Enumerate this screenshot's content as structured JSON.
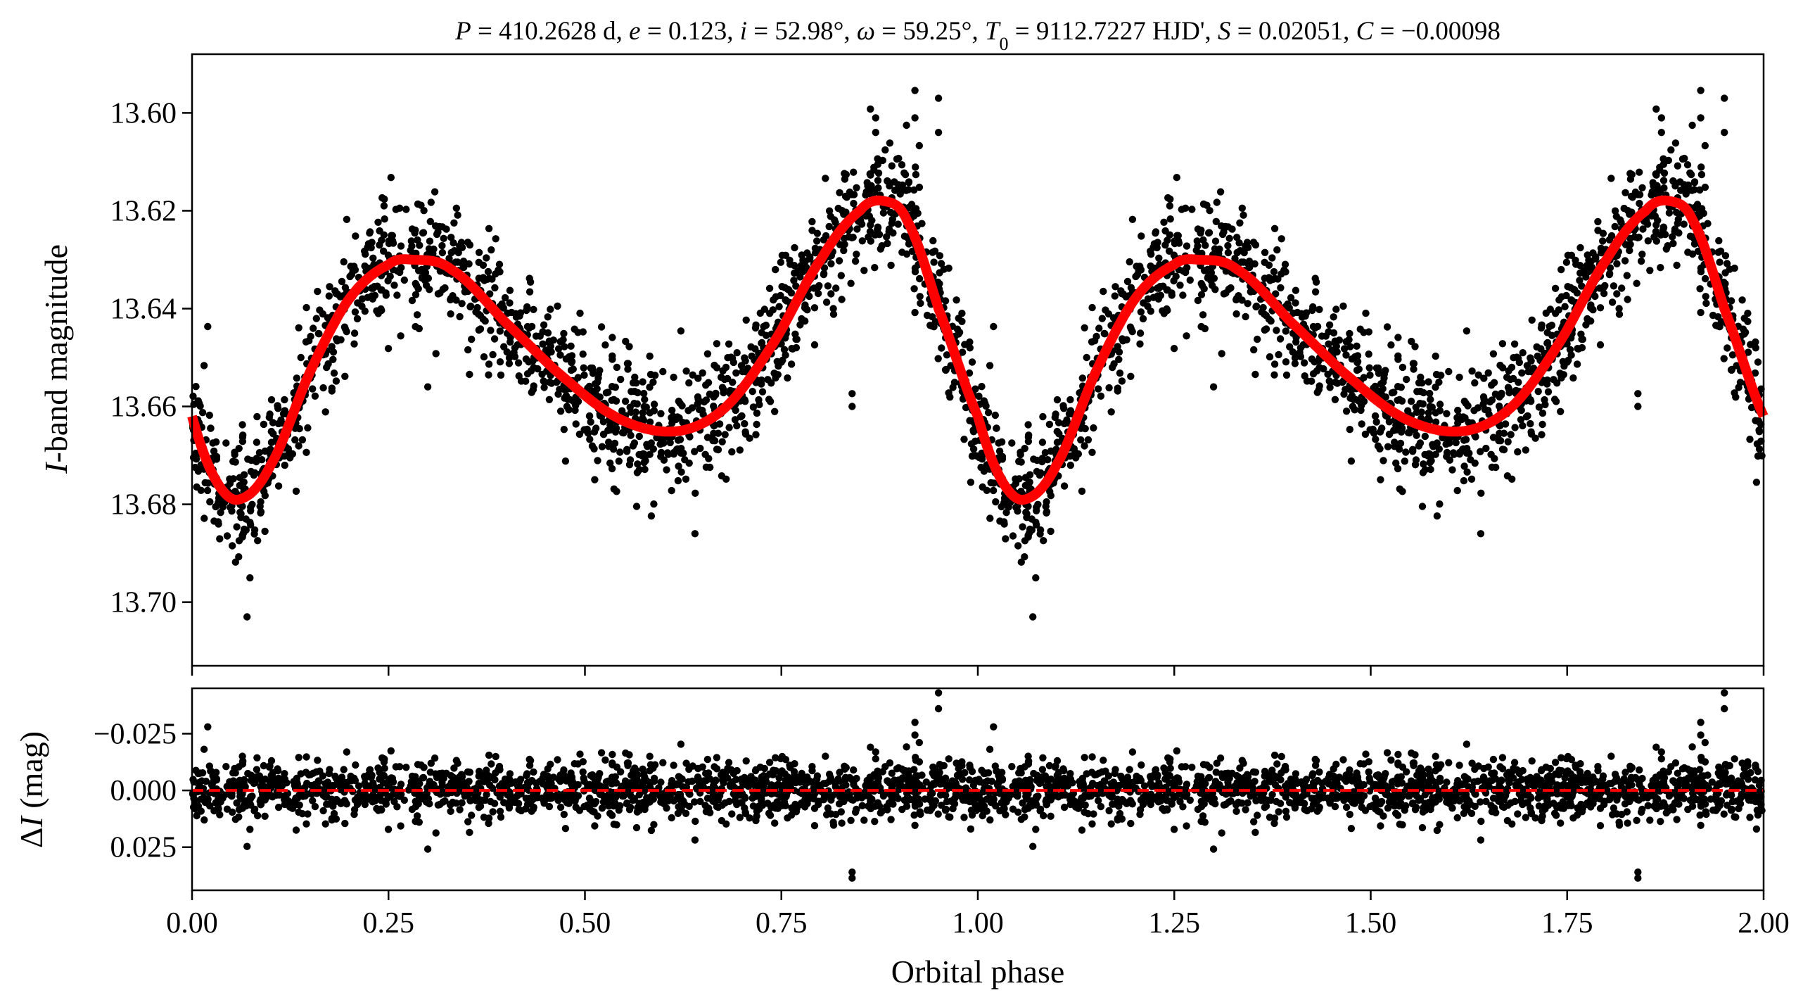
{
  "chart_data": [
    {
      "type": "scatter",
      "panel": "light-curve",
      "title_parts": [
        {
          "t": "P",
          "i": true
        },
        {
          "t": " = 410.2628 d, "
        },
        {
          "t": "e",
          "i": true
        },
        {
          "t": " = 0.123, "
        },
        {
          "t": "i",
          "i": true
        },
        {
          "t": " = 52.98°, "
        },
        {
          "t": "ω",
          "i": true
        },
        {
          "t": " = 59.25°, "
        },
        {
          "t": "T",
          "i": true
        },
        {
          "t": "0",
          "sub": true
        },
        {
          "t": " = 9112.7227 HJD', "
        },
        {
          "t": "S",
          "i": true
        },
        {
          "t": " = 0.02051, "
        },
        {
          "t": "C",
          "i": true
        },
        {
          "t": " = −0.00098"
        }
      ],
      "ylabel_parts": [
        {
          "t": "I",
          "i": true
        },
        {
          "t": "-band magnitude"
        }
      ],
      "xlim": [
        0,
        2
      ],
      "ylim": [
        13.713,
        13.588
      ],
      "y_inverted": true,
      "yticks": [
        13.6,
        13.62,
        13.64,
        13.66,
        13.68,
        13.7
      ],
      "ytick_labels": [
        "13.60",
        "13.62",
        "13.64",
        "13.66",
        "13.68",
        "13.70"
      ],
      "xticks": [
        0,
        0.25,
        0.5,
        0.75,
        1.0,
        1.25,
        1.5,
        1.75,
        2.0
      ],
      "model_color": "#ff0000",
      "point_color": "#000000",
      "points_per_cycle": 1500,
      "noise_sigma_mag": 0.0065,
      "model_curve": {
        "phase": [
          0.0,
          0.03,
          0.06,
          0.1,
          0.15,
          0.2,
          0.25,
          0.28,
          0.33,
          0.4,
          0.48,
          0.55,
          0.62,
          0.68,
          0.74,
          0.8,
          0.85,
          0.88,
          0.91,
          0.95,
          1.0
        ],
        "mag": [
          13.662,
          13.675,
          13.679,
          13.672,
          13.653,
          13.638,
          13.631,
          13.63,
          13.632,
          13.643,
          13.655,
          13.663,
          13.665,
          13.66,
          13.647,
          13.63,
          13.62,
          13.618,
          13.622,
          13.64,
          13.662
        ]
      },
      "outliers": [
        [
          0.87,
          13.601
        ],
        [
          0.92,
          13.601
        ],
        [
          0.95,
          13.597
        ],
        [
          0.87,
          13.604
        ],
        [
          0.07,
          13.703
        ],
        [
          0.84,
          13.66
        ],
        [
          0.64,
          13.686
        ],
        [
          0.3,
          13.656
        ]
      ]
    },
    {
      "type": "scatter",
      "panel": "residuals",
      "ylabel_parts": [
        {
          "t": "Δ"
        },
        {
          "t": "I",
          "i": true
        },
        {
          "t": " (mag)"
        }
      ],
      "xlabel": "Orbital phase",
      "xlim": [
        0,
        2
      ],
      "ylim": [
        0.044,
        -0.045
      ],
      "yticks": [
        -0.025,
        0,
        0.025
      ],
      "ytick_labels": [
        "−0.025",
        "0.000",
        "0.025"
      ],
      "xticks": [
        0,
        0.25,
        0.5,
        0.75,
        1.0,
        1.25,
        1.5,
        1.75,
        2.0
      ],
      "xtick_labels": [
        "0.00",
        "0.25",
        "0.50",
        "0.75",
        "1.00",
        "1.25",
        "1.50",
        "1.75",
        "2.00"
      ],
      "zero_line": 0,
      "zero_line_color": "#ff0000",
      "outliers": [
        [
          0.95,
          -0.036
        ],
        [
          0.92,
          -0.03
        ],
        [
          0.84,
          0.036
        ],
        [
          0.02,
          -0.028
        ]
      ]
    }
  ]
}
